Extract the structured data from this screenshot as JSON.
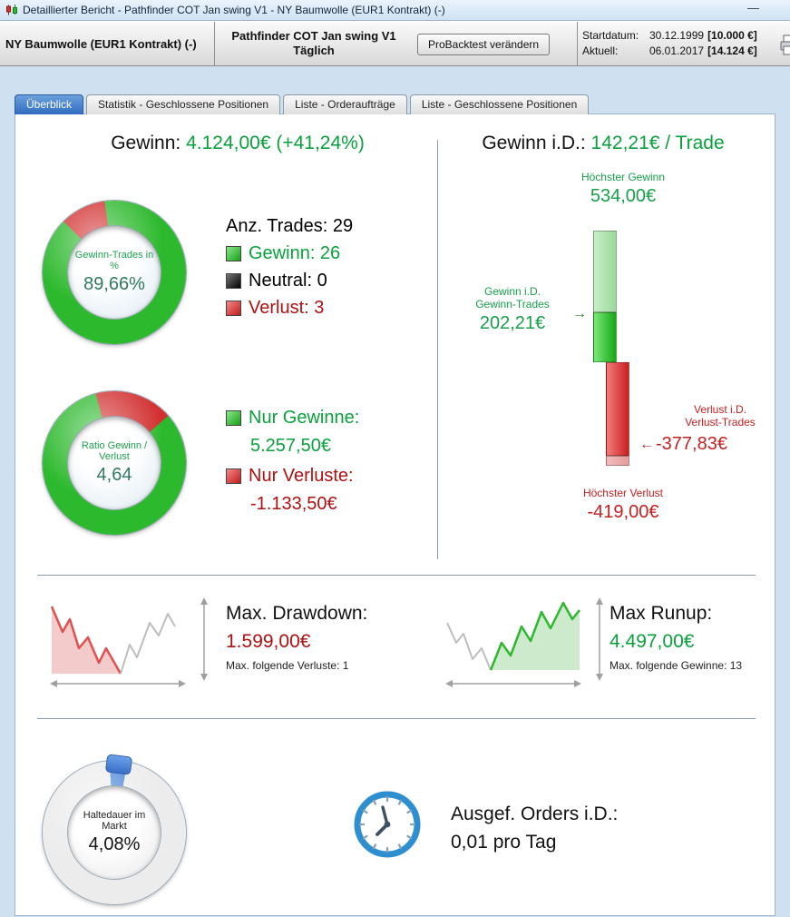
{
  "window": {
    "title": "Detaillierter Bericht - Pathfinder COT Jan swing V1 - NY Baumwolle (EUR1 Kontrakt) (-)",
    "minimize_label": "—"
  },
  "header": {
    "instrument": "NY Baumwolle (EUR1 Kontrakt) (-)",
    "strategy_name": "Pathfinder COT Jan swing V1",
    "strategy_timeframe": "Täglich",
    "backtest_button": "ProBacktest verändern",
    "start_label": "Startdatum:",
    "start_date": "30.12.1999",
    "start_capital": "[10.000 €]",
    "current_label": "Aktuell:",
    "current_date": "06.01.2017",
    "current_capital": "[14.124 €]"
  },
  "tabs": {
    "overview": "Überblick",
    "statistics": "Statistik - Geschlossene Positionen",
    "order_list": "Liste - Orderaufträge",
    "closed_list": "Liste - Geschlossene Positionen"
  },
  "overview": {
    "profit_label": "Gewinn:",
    "profit_value": "4.124,00€ (+41,24%)",
    "profit_per_trade_label": "Gewinn i.D.:",
    "profit_per_trade_value": "142,21€ / Trade",
    "win_donut": {
      "label": "Gewinn-Trades in %",
      "value": "89,66%",
      "win_pct": 89.66
    },
    "ratio_donut": {
      "label": "Ratio Gewinn / Verlust",
      "value": "4,64",
      "ratio": 4.64
    },
    "trade_stats": {
      "total": "Anz. Trades: 29",
      "wins": "Gewinn: 26",
      "neutral": "Neutral: 0",
      "losses": "Verlust: 3"
    },
    "only_wins_label": "Nur Gewinne:",
    "only_wins_value": "5.257,50€",
    "only_losses_label": "Nur Verluste:",
    "only_losses_value": "-1.133,50€",
    "distribution": {
      "max_win_label": "Höchster Gewinn",
      "max_win_value": "534,00€",
      "avg_win_label1": "Gewinn i.D.",
      "avg_win_label2": "Gewinn-Trades",
      "avg_win_value": "202,21€",
      "avg_loss_label1": "Verlust i.D.",
      "avg_loss_label2": "Verlust-Trades",
      "avg_loss_value": "-377,83€",
      "max_loss_label": "Höchster Verlust",
      "max_loss_value": "-419,00€",
      "max_win": 534.0,
      "avg_win": 202.21,
      "avg_loss": 377.83,
      "max_loss": 419.0
    },
    "drawdown": {
      "label": "Max. Drawdown:",
      "value": "1.599,00€",
      "sub": "Max. folgende Verluste: 1"
    },
    "runup": {
      "label": "Max Runup:",
      "value": "4.497,00€",
      "sub": "Max. folgende Gewinne: 13"
    },
    "holding": {
      "label": "Haltedauer im Markt",
      "value": "4,08%",
      "pct": 4.08
    },
    "orders_per_day": {
      "label": "Ausgef. Orders i.D.:",
      "value": "0,01 pro Tag"
    }
  },
  "colors": {
    "green_fill": "#2db92d",
    "red_fill": "#d23030",
    "blue_fill": "#4a86d8",
    "gauge_base": "#ececec",
    "green_text": "#0aa13c",
    "dark_red_text": "#b01010"
  }
}
